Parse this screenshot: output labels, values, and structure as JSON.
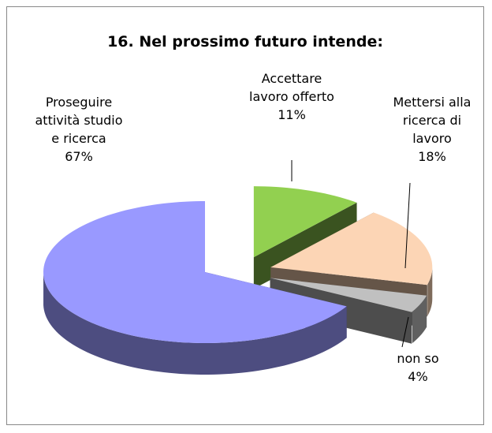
{
  "chart_data": {
    "type": "pie3d",
    "title": "16. Nel prossimo futuro intende:",
    "categories": [
      "Accettare lavoro offerto",
      "Mettersi alla ricerca di lavoro",
      "non so",
      "Proseguire attività studio e ricerca"
    ],
    "values": [
      11,
      18,
      4,
      67
    ],
    "value_labels": [
      "11%",
      "18%",
      "4%",
      "67%"
    ],
    "colors": [
      "#92d050",
      "#fcd5b5",
      "#c0c0c0",
      "#9999ff"
    ]
  }
}
